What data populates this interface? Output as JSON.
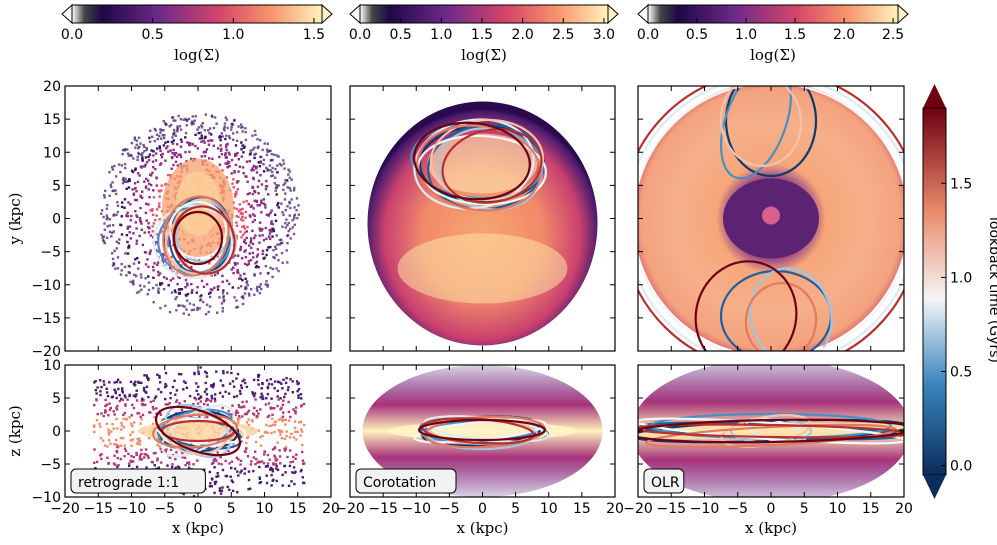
{
  "chart_data": [
    {
      "type": "heatmap",
      "panel_label": "retrograde 1:1",
      "top_colorbar": {
        "label": "log(Σ)",
        "ticks": [
          "0.0",
          "0.5",
          "1.0",
          "1.5"
        ],
        "range": [
          0,
          1.55
        ]
      },
      "xy": {
        "ylabel": "y (kpc)",
        "xlim": [
          -20,
          20
        ],
        "ylim": [
          -20,
          20
        ],
        "yticks": [
          "20",
          "15",
          "10",
          "5",
          "0",
          "−5",
          "−10",
          "−15",
          "−20"
        ]
      },
      "xz": {
        "xlabel": "x (kpc)",
        "ylabel": "z (kpc)",
        "xlim": [
          -20,
          20
        ],
        "ylim": [
          -10,
          10
        ],
        "xticks": [
          "−20",
          "−15",
          "−10",
          "−5",
          "0",
          "5",
          "10",
          "15",
          "20"
        ],
        "yticks": [
          "10",
          "5",
          "0",
          "−5",
          "−10"
        ]
      }
    },
    {
      "type": "heatmap",
      "panel_label": "Corotation",
      "top_colorbar": {
        "label": "log(Σ)",
        "ticks": [
          "0.0",
          "0.5",
          "1.0",
          "1.5",
          "2.0",
          "2.5",
          "3.0"
        ],
        "range": [
          0,
          3.05
        ]
      },
      "xy": {
        "xlim": [
          -20,
          20
        ],
        "ylim": [
          -20,
          20
        ]
      },
      "xz": {
        "xlabel": "x (kpc)",
        "xlim": [
          -20,
          20
        ],
        "ylim": [
          -10,
          10
        ],
        "xticks": [
          "−20",
          "−15",
          "−10",
          "−5",
          "0",
          "5",
          "10",
          "15",
          "20"
        ]
      }
    },
    {
      "type": "heatmap",
      "panel_label": "OLR",
      "top_colorbar": {
        "label": "log(Σ)",
        "ticks": [
          "0.0",
          "0.5",
          "1.0",
          "1.5",
          "2.0",
          "2.5"
        ],
        "range": [
          0,
          2.55
        ]
      },
      "xy": {
        "xlim": [
          -20,
          20
        ],
        "ylim": [
          -20,
          20
        ]
      },
      "xz": {
        "xlabel": "x (kpc)",
        "xlim": [
          -20,
          20
        ],
        "ylim": [
          -10,
          10
        ],
        "xticks": [
          "−20",
          "−15",
          "−10",
          "−5",
          "0",
          "5",
          "10",
          "15",
          "20"
        ]
      }
    }
  ],
  "right_colorbar": {
    "label": "lookback time (Gyrs)",
    "ticks": [
      "0.0",
      "0.5",
      "1.0",
      "1.5"
    ],
    "range": [
      -0.05,
      1.9
    ]
  },
  "colors": {
    "density_low": "#2a0a4d",
    "density_mid": "#c1396a",
    "density_high": "#fff0b3",
    "time_recent": "#0b3a6e",
    "time_mid": "#f5f5f5",
    "time_old": "#6e0012"
  }
}
